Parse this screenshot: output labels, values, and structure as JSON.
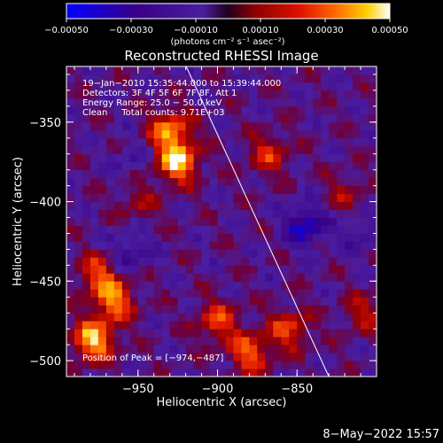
{
  "chart_data": {
    "type": "heatmap",
    "title": "Reconstructed RHESSI Image",
    "xlabel": "Heliocentric X (arcsec)",
    "ylabel": "Heliocentric Y (arcsec)",
    "xlim": [
      -995,
      -800
    ],
    "ylim": [
      -510,
      -315
    ],
    "x_ticks": [
      -950,
      -900,
      -850
    ],
    "y_ticks": [
      -500,
      -450,
      -400,
      -350
    ],
    "x_tick_labels": [
      "−950",
      "−900",
      "−850"
    ],
    "y_tick_labels": [
      "−500",
      "−450",
      "−400",
      "−350"
    ],
    "colorbar": {
      "range": [
        -0.0005,
        0.0005
      ],
      "ticks": [
        -0.0005,
        -0.0003,
        -0.0001,
        0.0001,
        0.0003,
        0.0005
      ],
      "tick_labels": [
        "−0.00050",
        "−0.00030",
        "−0.00010",
        "0.00010",
        "0.00030",
        "0.00050"
      ],
      "unit_label": "(photons cm⁻² s⁻¹ asec⁻²)",
      "colors": [
        "#0000ff",
        "#3a0085",
        "#4a1ea0",
        "#8a0000",
        "#e01000",
        "#ff7000",
        "#ffd000",
        "#ffffff"
      ]
    },
    "annotations": [
      "19−Jan−2010 15:35:44.000 to 15:39:44.000",
      "Detectors: 3F 4F 5F 6F 7F 8F, Att 1",
      "Energy Range: 25.0 − 50.0 keV",
      "Clean     Total counts: 9.71E+03"
    ],
    "peak_label": "Position of Peak = [−974,−487]",
    "peak": [
      -974,
      -487
    ],
    "limb_line": [
      [
        -922,
        -310
      ],
      [
        -830,
        -510
      ]
    ],
    "hot_regions": [
      {
        "x": -930,
        "y": -355,
        "intensity": 0.0004
      },
      {
        "x": -925,
        "y": -375,
        "intensity": 0.0005
      },
      {
        "x": -950,
        "y": -400,
        "intensity": 0.00015
      },
      {
        "x": -975,
        "y": -445,
        "intensity": 0.0003
      },
      {
        "x": -965,
        "y": -462,
        "intensity": 0.0004
      },
      {
        "x": -978,
        "y": -487,
        "intensity": 0.0005
      },
      {
        "x": -900,
        "y": -475,
        "intensity": 0.0003
      },
      {
        "x": -880,
        "y": -495,
        "intensity": 0.00035
      },
      {
        "x": -855,
        "y": -480,
        "intensity": 0.0003
      },
      {
        "x": -868,
        "y": -370,
        "intensity": 0.00025
      },
      {
        "x": -820,
        "y": -395,
        "intensity": 0.00015
      },
      {
        "x": -808,
        "y": -470,
        "intensity": 0.0002
      }
    ],
    "cold_regions": [
      {
        "x": -845,
        "y": -415,
        "intensity": -0.00035
      },
      {
        "x": -955,
        "y": -432,
        "intensity": -0.0002
      },
      {
        "x": -810,
        "y": -420,
        "intensity": -0.00015
      },
      {
        "x": -955,
        "y": -375,
        "intensity": -0.0001
      }
    ]
  },
  "footer_date": "8−May−2022 15:57"
}
